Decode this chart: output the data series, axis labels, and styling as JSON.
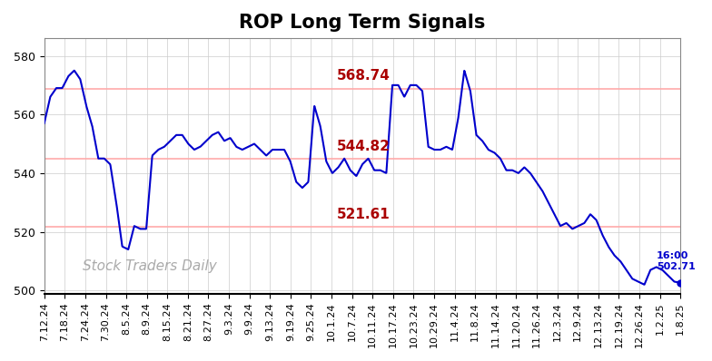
{
  "title": "ROP Long Term Signals",
  "title_fontsize": 15,
  "title_fontweight": "bold",
  "bg_color": "#ffffff",
  "plot_bg_color": "#ffffff",
  "line_color": "#0000cc",
  "line_width": 1.5,
  "hline_values": [
    568.74,
    544.82,
    521.61
  ],
  "hline_color": "#ffaaaa",
  "hline_labels_color": "#aa0000",
  "hline_label_fontsize": 11,
  "watermark": "Stock Traders Daily",
  "watermark_color": "#aaaaaa",
  "watermark_fontsize": 11,
  "annotation_value": 502.71,
  "ylabel_fontsize": 9,
  "xlabel_fontsize": 8,
  "yticks": [
    500,
    520,
    540,
    560,
    580
  ],
  "ylim": [
    499,
    586
  ],
  "xlabels": [
    "7.12.24",
    "7.18.24",
    "7.24.24",
    "7.30.24",
    "8.5.24",
    "8.9.24",
    "8.15.24",
    "8.21.24",
    "8.27.24",
    "9.3.24",
    "9.9.24",
    "9.13.24",
    "9.19.24",
    "9.25.24",
    "10.1.24",
    "10.7.24",
    "10.11.24",
    "10.17.24",
    "10.23.24",
    "10.29.24",
    "11.4.24",
    "11.8.24",
    "11.14.24",
    "11.20.24",
    "11.26.24",
    "12.3.24",
    "12.9.24",
    "12.13.24",
    "12.19.24",
    "12.26.24",
    "1.2.25",
    "1.8.25"
  ],
  "keypoints": [
    [
      0,
      557
    ],
    [
      1,
      566
    ],
    [
      2,
      569
    ],
    [
      3,
      569
    ],
    [
      4,
      573
    ],
    [
      5,
      575
    ],
    [
      6,
      572
    ],
    [
      7,
      563
    ],
    [
      8,
      556
    ],
    [
      9,
      545
    ],
    [
      10,
      545
    ],
    [
      11,
      543
    ],
    [
      12,
      530
    ],
    [
      13,
      515
    ],
    [
      14,
      514
    ],
    [
      15,
      522
    ],
    [
      16,
      521
    ],
    [
      17,
      521
    ],
    [
      18,
      546
    ],
    [
      19,
      548
    ],
    [
      20,
      549
    ],
    [
      21,
      551
    ],
    [
      22,
      553
    ],
    [
      23,
      553
    ],
    [
      24,
      550
    ],
    [
      25,
      548
    ],
    [
      26,
      549
    ],
    [
      27,
      551
    ],
    [
      28,
      553
    ],
    [
      29,
      554
    ],
    [
      30,
      551
    ],
    [
      31,
      552
    ],
    [
      32,
      549
    ],
    [
      33,
      548
    ],
    [
      34,
      549
    ],
    [
      35,
      550
    ],
    [
      36,
      548
    ],
    [
      37,
      546
    ],
    [
      38,
      548
    ],
    [
      39,
      548
    ],
    [
      40,
      548
    ],
    [
      41,
      544
    ],
    [
      42,
      537
    ],
    [
      43,
      535
    ],
    [
      44,
      537
    ],
    [
      45,
      563
    ],
    [
      46,
      556
    ],
    [
      47,
      544
    ],
    [
      48,
      540
    ],
    [
      49,
      542
    ],
    [
      50,
      545
    ],
    [
      51,
      541
    ],
    [
      52,
      539
    ],
    [
      53,
      543
    ],
    [
      54,
      545
    ],
    [
      55,
      541
    ],
    [
      56,
      541
    ],
    [
      57,
      540
    ],
    [
      58,
      570
    ],
    [
      59,
      570
    ],
    [
      60,
      566
    ],
    [
      61,
      570
    ],
    [
      62,
      570
    ],
    [
      63,
      568
    ],
    [
      64,
      549
    ],
    [
      65,
      548
    ],
    [
      66,
      548
    ],
    [
      67,
      549
    ],
    [
      68,
      548
    ],
    [
      69,
      559
    ],
    [
      70,
      575
    ],
    [
      71,
      568
    ],
    [
      72,
      553
    ],
    [
      73,
      551
    ],
    [
      74,
      548
    ],
    [
      75,
      547
    ],
    [
      76,
      545
    ],
    [
      77,
      541
    ],
    [
      78,
      541
    ],
    [
      79,
      540
    ],
    [
      80,
      542
    ],
    [
      81,
      540
    ],
    [
      82,
      537
    ],
    [
      83,
      534
    ],
    [
      84,
      530
    ],
    [
      85,
      526
    ],
    [
      86,
      522
    ],
    [
      87,
      523
    ],
    [
      88,
      521
    ],
    [
      89,
      522
    ],
    [
      90,
      523
    ],
    [
      91,
      526
    ],
    [
      92,
      524
    ],
    [
      93,
      519
    ],
    [
      94,
      515
    ],
    [
      95,
      512
    ],
    [
      96,
      510
    ],
    [
      97,
      507
    ],
    [
      98,
      504
    ],
    [
      99,
      503
    ],
    [
      100,
      502
    ],
    [
      101,
      507
    ],
    [
      102,
      508
    ],
    [
      103,
      507
    ],
    [
      104,
      505
    ],
    [
      105,
      503
    ],
    [
      106,
      502.71
    ]
  ]
}
